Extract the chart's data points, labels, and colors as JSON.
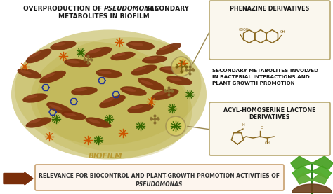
{
  "title_line1": "OVERPRODUCTION OF ",
  "title_italic": "PSEUDOMONAS",
  "title_line1b": " SECONDARY",
  "title_line2": "METABOLITES IN BIOFILM",
  "biofilm_label": "BIOFILM",
  "box1_title": "PHENAZINE DERIVATIVES",
  "box2_title": "ACYL-HOMOSERINE LACTONE\nDERIVATIVES",
  "side_text": "SECONDARY METABOLITES INVOLVED\nIN BACTERIAL INTERACTIONS AND\nPLANT-GROWTH PROMOTION",
  "bottom_text_line1": "RELEVANCE FOR BIOCONTROL AND PLANT-GROWTH PROMOTION ACTIVITIES OF",
  "bottom_text_line2": "PSEUDOMONAS",
  "bg_color": "#ffffff",
  "biofilm_color": "#b5a832",
  "biofilm_alpha": 0.38,
  "title_color": "#1a1a1a",
  "box_border_color": "#b8a870",
  "bacteria_color": "#7a2e0a",
  "bottom_box_border": "#c8a06e",
  "bottom_text_color": "#333333",
  "arrow_color": "#7a2e0a",
  "biofilm_text_color": "#b89830",
  "line_color": "#9a8850",
  "mol_orange": "#cc5500",
  "mol_green": "#336600",
  "mol_blue": "#223399",
  "chem_color": "#8a6820"
}
